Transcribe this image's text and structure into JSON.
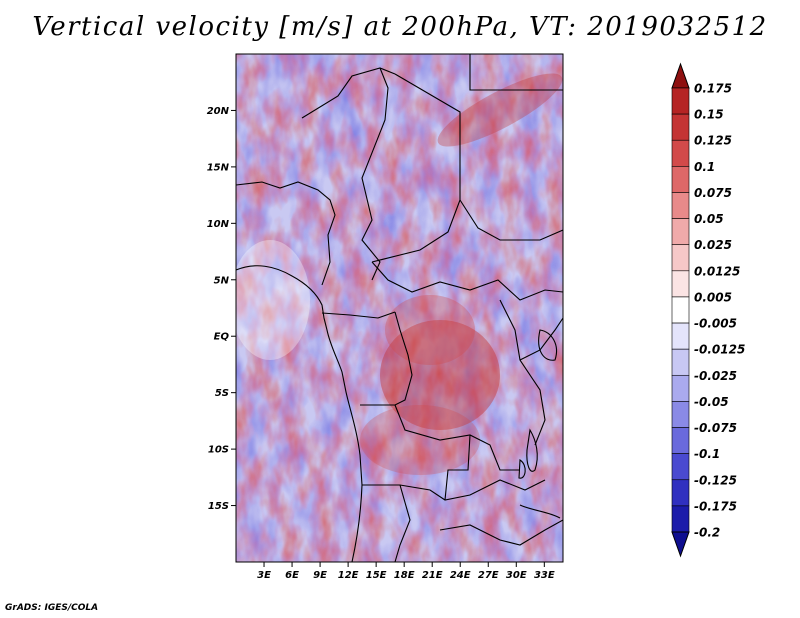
{
  "title": "Vertical velocity [m/s] at 200hPa, VT: 2019032512",
  "footer": "GrADS: IGES/COLA",
  "map": {
    "lon_range": [
      0,
      35
    ],
    "lat_range": [
      -20,
      25
    ],
    "lat_ticks": [
      {
        "value": 20,
        "label": "20N"
      },
      {
        "value": 15,
        "label": "15N"
      },
      {
        "value": 10,
        "label": "10N"
      },
      {
        "value": 5,
        "label": "5N"
      },
      {
        "value": 0,
        "label": "EQ"
      },
      {
        "value": -5,
        "label": "5S"
      },
      {
        "value": -10,
        "label": "10S"
      },
      {
        "value": -15,
        "label": "15S"
      }
    ],
    "lon_ticks": [
      {
        "value": 3,
        "label": "3E"
      },
      {
        "value": 6,
        "label": "6E"
      },
      {
        "value": 9,
        "label": "9E"
      },
      {
        "value": 12,
        "label": "12E"
      },
      {
        "value": 15,
        "label": "15E"
      },
      {
        "value": 18,
        "label": "18E"
      },
      {
        "value": 21,
        "label": "21E"
      },
      {
        "value": 24,
        "label": "24E"
      },
      {
        "value": 27,
        "label": "27E"
      },
      {
        "value": 30,
        "label": "30E"
      },
      {
        "value": 33,
        "label": "33E"
      }
    ]
  },
  "colorbar": {
    "levels": [
      {
        "label": "0.175",
        "color": "#a51a1a"
      },
      {
        "label": "0.15",
        "color": "#b52424"
      },
      {
        "label": "0.125",
        "color": "#c43434"
      },
      {
        "label": "0.1",
        "color": "#d24a4a"
      },
      {
        "label": "0.075",
        "color": "#de6868"
      },
      {
        "label": "0.05",
        "color": "#e88a8a"
      },
      {
        "label": "0.025",
        "color": "#f0aaaa"
      },
      {
        "label": "0.0125",
        "color": "#f6c8c8"
      },
      {
        "label": "0.005",
        "color": "#fbe4e4"
      },
      {
        "label": "-0.005",
        "color": "#ffffff"
      },
      {
        "label": "-0.0125",
        "color": "#e4e4fb"
      },
      {
        "label": "-0.025",
        "color": "#c8c8f4"
      },
      {
        "label": "-0.05",
        "color": "#aaaaee"
      },
      {
        "label": "-0.075",
        "color": "#8a8ae6"
      },
      {
        "label": "-0.1",
        "color": "#6a6adc"
      },
      {
        "label": "-0.125",
        "color": "#4a4ad0"
      },
      {
        "label": "-0.175",
        "color": "#3030c0"
      },
      {
        "label": "-0.2",
        "color": "#1c1caa"
      }
    ],
    "top_cap_color": "#8e1010",
    "bottom_cap_color": "#0f0f90"
  }
}
